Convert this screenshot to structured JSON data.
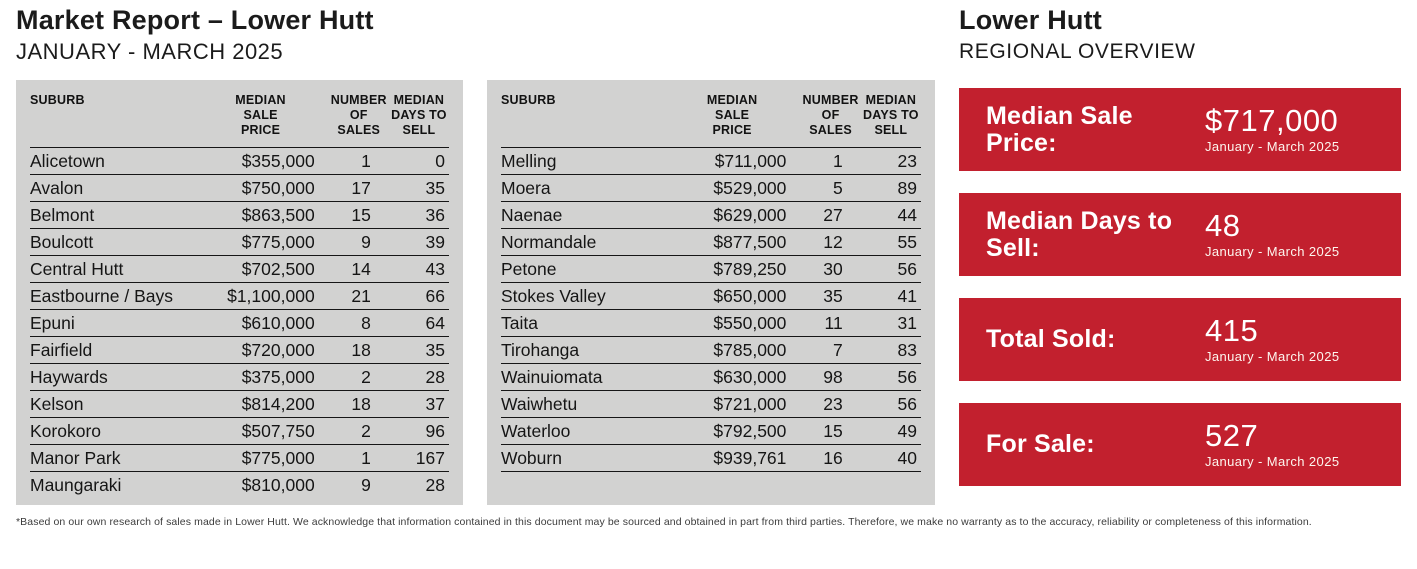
{
  "page": {
    "title": "Market Report – Lower Hutt",
    "subtitle": "JANUARY - MARCH 2025",
    "footnote": "*Based on our own research of sales made in Lower Hutt. We acknowledge that information contained in this document may be sourced and obtained in part from third parties. Therefore, we make no warranty as to the accuracy, reliability or completeness of this information."
  },
  "table_headers": [
    "SUBURB",
    "MEDIAN\nSALE\nPRICE",
    "NUMBER\nOF SALES",
    "MEDIAN\nDAYS TO\nSELL"
  ],
  "suburb_tables": {
    "left_rows": [
      {
        "suburb": "Alicetown",
        "price": "$355,000",
        "sales": "1",
        "days": "0"
      },
      {
        "suburb": "Avalon",
        "price": "$750,000",
        "sales": "17",
        "days": "35"
      },
      {
        "suburb": "Belmont",
        "price": "$863,500",
        "sales": "15",
        "days": "36"
      },
      {
        "suburb": "Boulcott",
        "price": "$775,000",
        "sales": "9",
        "days": "39"
      },
      {
        "suburb": "Central Hutt",
        "price": "$702,500",
        "sales": "14",
        "days": "43"
      },
      {
        "suburb": "Eastbourne / Bays",
        "price": "$1,100,000",
        "sales": "21",
        "days": "66"
      },
      {
        "suburb": "Epuni",
        "price": "$610,000",
        "sales": "8",
        "days": "64"
      },
      {
        "suburb": "Fairfield",
        "price": "$720,000",
        "sales": "18",
        "days": "35"
      },
      {
        "suburb": "Haywards",
        "price": "$375,000",
        "sales": "2",
        "days": "28"
      },
      {
        "suburb": "Kelson",
        "price": "$814,200",
        "sales": "18",
        "days": "37"
      },
      {
        "suburb": "Korokoro",
        "price": "$507,750",
        "sales": "2",
        "days": "96"
      },
      {
        "suburb": "Manor Park",
        "price": "$775,000",
        "sales": "1",
        "days": "167"
      },
      {
        "suburb": "Maungaraki",
        "price": "$810,000",
        "sales": "9",
        "days": "28"
      }
    ],
    "right_rows": [
      {
        "suburb": "Melling",
        "price": "$711,000",
        "sales": "1",
        "days": "23"
      },
      {
        "suburb": "Moera",
        "price": "$529,000",
        "sales": "5",
        "days": "89"
      },
      {
        "suburb": "Naenae",
        "price": "$629,000",
        "sales": "27",
        "days": "44"
      },
      {
        "suburb": "Normandale",
        "price": "$877,500",
        "sales": "12",
        "days": "55"
      },
      {
        "suburb": "Petone",
        "price": "$789,250",
        "sales": "30",
        "days": "56"
      },
      {
        "suburb": "Stokes Valley",
        "price": "$650,000",
        "sales": "35",
        "days": "41"
      },
      {
        "suburb": "Taita",
        "price": "$550,000",
        "sales": "11",
        "days": "31"
      },
      {
        "suburb": "Tirohanga",
        "price": "$785,000",
        "sales": "7",
        "days": "83"
      },
      {
        "suburb": "Wainuiomata",
        "price": "$630,000",
        "sales": "98",
        "days": "56"
      },
      {
        "suburb": "Waiwhetu",
        "price": "$721,000",
        "sales": "23",
        "days": "56"
      },
      {
        "suburb": "Waterloo",
        "price": "$792,500",
        "sales": "15",
        "days": "49"
      },
      {
        "suburb": "Woburn",
        "price": "$939,761",
        "sales": "16",
        "days": "40"
      }
    ]
  },
  "overview": {
    "title": "Lower Hutt",
    "subtitle": "REGIONAL OVERVIEW",
    "cards": [
      {
        "label": "Median Sale Price:",
        "value": "$717,000",
        "period": "January - March 2025"
      },
      {
        "label": "Median Days to Sell:",
        "value": "48",
        "period": "January - March 2025"
      },
      {
        "label": "Total Sold:",
        "value": "415",
        "period": "January - March 2025"
      },
      {
        "label": "For Sale:",
        "value": "527",
        "period": "January - March 2025"
      }
    ]
  },
  "colors": {
    "accent_red": "#c2202e",
    "panel_gray": "#d2d2d1"
  }
}
